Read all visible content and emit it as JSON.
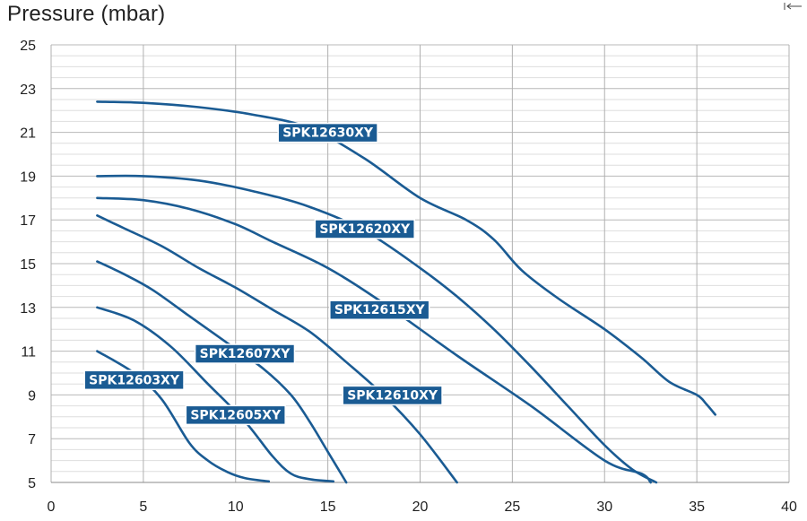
{
  "chart_data": {
    "type": "line",
    "title": "Pressure (mbar)",
    "xlabel": "",
    "ylabel": "Pressure (mbar)",
    "xlim": [
      0,
      40
    ],
    "ylim": [
      5,
      25
    ],
    "x_ticks": [
      0,
      5,
      10,
      15,
      20,
      25,
      30,
      35,
      40
    ],
    "y_ticks": [
      5,
      7,
      9,
      11,
      13,
      15,
      17,
      19,
      21,
      23,
      25
    ],
    "grid": true,
    "line_color": "#1a5b93",
    "label_bg_color": "#1a5b93",
    "series": [
      {
        "name": "SPK12603XY",
        "points": [
          [
            2.5,
            11.0
          ],
          [
            4.5,
            10.0
          ],
          [
            6.0,
            8.8
          ],
          [
            7.5,
            6.8
          ],
          [
            8.5,
            6.0
          ],
          [
            9.5,
            5.5
          ],
          [
            10.5,
            5.2
          ],
          [
            11.8,
            5.05
          ]
        ]
      },
      {
        "name": "SPK12605XY",
        "points": [
          [
            2.5,
            13.0
          ],
          [
            4.5,
            12.4
          ],
          [
            6.5,
            11.2
          ],
          [
            8.5,
            9.5
          ],
          [
            10.5,
            7.8
          ],
          [
            12.0,
            6.2
          ],
          [
            13.0,
            5.4
          ],
          [
            14.0,
            5.15
          ],
          [
            15.3,
            5.05
          ]
        ]
      },
      {
        "name": "SPK12607XY",
        "points": [
          [
            2.5,
            15.1
          ],
          [
            4.0,
            14.5
          ],
          [
            5.5,
            13.8
          ],
          [
            7.5,
            12.6
          ],
          [
            9.5,
            11.4
          ],
          [
            11.5,
            10.2
          ],
          [
            13.0,
            9.0
          ],
          [
            14.0,
            7.8
          ],
          [
            15.0,
            6.4
          ],
          [
            16.0,
            5.0
          ]
        ]
      },
      {
        "name": "SPK12610XY",
        "points": [
          [
            2.5,
            17.2
          ],
          [
            4.0,
            16.6
          ],
          [
            6.0,
            15.8
          ],
          [
            8.0,
            14.8
          ],
          [
            10.0,
            13.9
          ],
          [
            12.0,
            12.9
          ],
          [
            14.0,
            11.9
          ],
          [
            16.0,
            10.5
          ],
          [
            18.0,
            9.0
          ],
          [
            20.0,
            7.2
          ],
          [
            22.0,
            5.0
          ]
        ]
      },
      {
        "name": "SPK12615XY",
        "points": [
          [
            2.5,
            18.0
          ],
          [
            5.0,
            17.9
          ],
          [
            7.5,
            17.5
          ],
          [
            10.0,
            16.8
          ],
          [
            12.0,
            16.0
          ],
          [
            15.0,
            14.8
          ],
          [
            18.0,
            13.2
          ],
          [
            22.0,
            10.8
          ],
          [
            26.0,
            8.5
          ],
          [
            30.0,
            6.0
          ],
          [
            32.0,
            5.4
          ],
          [
            32.5,
            5.0
          ]
        ]
      },
      {
        "name": "SPK12620XY",
        "points": [
          [
            2.5,
            19.0
          ],
          [
            5.0,
            19.0
          ],
          [
            8.0,
            18.8
          ],
          [
            11.0,
            18.3
          ],
          [
            14.0,
            17.6
          ],
          [
            17.0,
            16.5
          ],
          [
            20.0,
            14.8
          ],
          [
            22.0,
            13.5
          ],
          [
            24.0,
            12.0
          ],
          [
            26.0,
            10.3
          ],
          [
            28.0,
            8.5
          ],
          [
            30.0,
            6.7
          ],
          [
            31.5,
            5.6
          ],
          [
            32.8,
            5.0
          ]
        ]
      },
      {
        "name": "SPK12630XY",
        "points": [
          [
            2.5,
            22.4
          ],
          [
            5.0,
            22.35
          ],
          [
            8.0,
            22.15
          ],
          [
            11.0,
            21.8
          ],
          [
            14.0,
            21.2
          ],
          [
            17.0,
            19.8
          ],
          [
            20.0,
            18.0
          ],
          [
            22.5,
            17.0
          ],
          [
            24.0,
            16.1
          ],
          [
            25.5,
            14.7
          ],
          [
            27.5,
            13.4
          ],
          [
            30.0,
            12.0
          ],
          [
            32.0,
            10.7
          ],
          [
            33.5,
            9.6
          ],
          [
            35.0,
            9.0
          ],
          [
            35.5,
            8.6
          ],
          [
            36.0,
            8.1
          ]
        ]
      }
    ],
    "labels": [
      {
        "text": "SPK12630XY",
        "x": 15.0,
        "y": 21.0
      },
      {
        "text": "SPK12620XY",
        "x": 17.0,
        "y": 16.6
      },
      {
        "text": "SPK12615XY",
        "x": 17.8,
        "y": 12.9
      },
      {
        "text": "SPK12607XY",
        "x": 10.5,
        "y": 10.9
      },
      {
        "text": "SPK12603XY",
        "x": 4.5,
        "y": 9.7
      },
      {
        "text": "SPK12605XY",
        "x": 10.0,
        "y": 8.1
      },
      {
        "text": "SPK12610XY",
        "x": 18.5,
        "y": 9.0
      }
    ]
  }
}
